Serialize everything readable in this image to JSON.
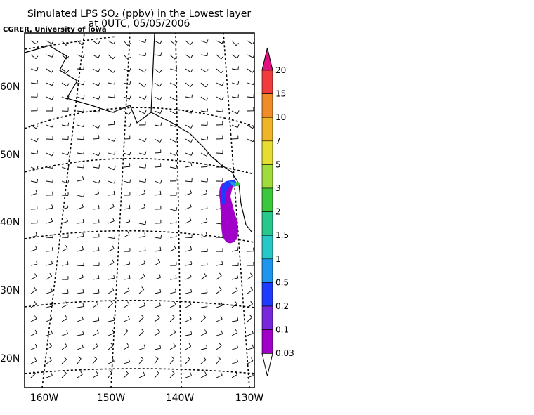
{
  "title": "Simulated LPS SO₂ (ppbv) in the Lowest layer",
  "subtitle": "at 0UTC, 05/05/2006",
  "credit": "CGRER, University of Iowa",
  "map": {
    "lat_labels": [
      "60N",
      "50N",
      "40N",
      "30N",
      "20N"
    ],
    "lon_labels": [
      "160W",
      "150W",
      "140W",
      "130W"
    ]
  },
  "colorbar": {
    "labels": [
      "20",
      "15",
      "10",
      "7",
      "5",
      "3",
      "2",
      "1.5",
      "1",
      "0.5",
      "0.2",
      "0.1",
      "0.03"
    ],
    "colors": [
      "#e0117f",
      "#f03c3c",
      "#f08c28",
      "#f0b428",
      "#e6dc32",
      "#a0dc3c",
      "#3cc83c",
      "#28c88c",
      "#28c8c8",
      "#1e96f0",
      "#1e3cff",
      "#7828dc",
      "#a000c8",
      "#ffffff"
    ]
  }
}
